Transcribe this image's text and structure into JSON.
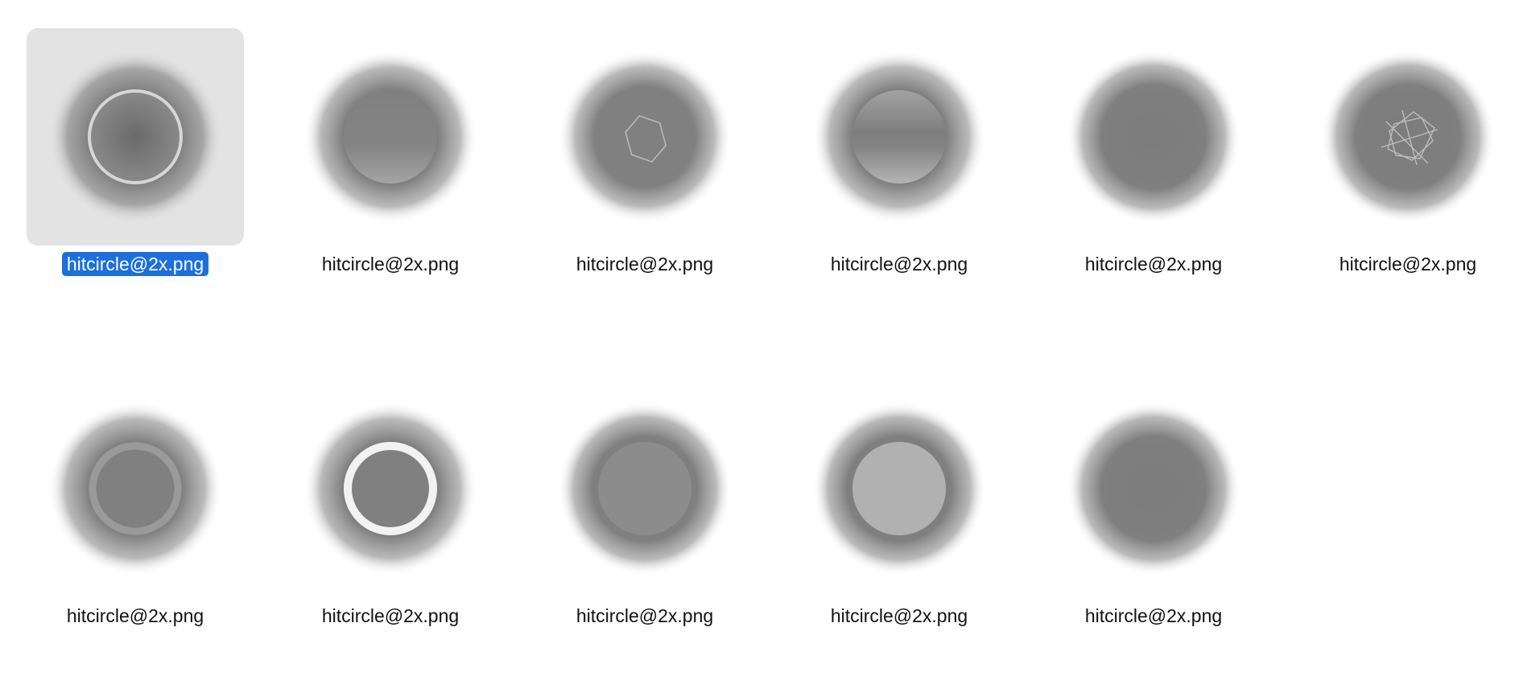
{
  "selection_color": "#1e6fdb",
  "selected_tile_color": "#e3e3e3",
  "files": [
    {
      "name": "hitcircle@2x.png",
      "selected": true,
      "style": "glass-ring"
    },
    {
      "name": "hitcircle@2x.png",
      "selected": false,
      "style": "bottom-gradient"
    },
    {
      "name": "hitcircle@2x.png",
      "selected": false,
      "style": "hexagon-outline"
    },
    {
      "name": "hitcircle@2x.png",
      "selected": false,
      "style": "banded-gradient"
    },
    {
      "name": "hitcircle@2x.png",
      "selected": false,
      "style": "plain-dark"
    },
    {
      "name": "hitcircle@2x.png",
      "selected": false,
      "style": "geometric-lines"
    },
    {
      "name": "hitcircle@2x.png",
      "selected": false,
      "style": "thin-grey-ring"
    },
    {
      "name": "hitcircle@2x.png",
      "selected": false,
      "style": "white-ring"
    },
    {
      "name": "hitcircle@2x.png",
      "selected": false,
      "style": "soft-grey-disc"
    },
    {
      "name": "hitcircle@2x.png",
      "selected": false,
      "style": "light-grey-disc"
    },
    {
      "name": "hitcircle@2x.png",
      "selected": false,
      "style": "plain-dark"
    }
  ]
}
